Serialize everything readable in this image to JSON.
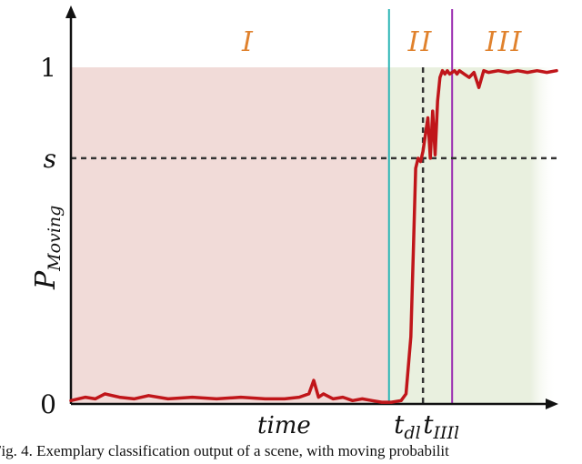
{
  "chart_data": {
    "type": "line",
    "title": "",
    "xlabel": "time",
    "ylabel": "P",
    "ylabel_sub": "Moving",
    "ylim": [
      0,
      1.2
    ],
    "xlim": [
      0,
      100
    ],
    "y_ticks": [
      {
        "value": 0,
        "label": "0"
      },
      {
        "value": 0.73,
        "label": "s"
      },
      {
        "value": 1,
        "label": "1"
      }
    ],
    "x_markers": [
      {
        "value": 72.5,
        "label": "t",
        "sub": "dl"
      },
      {
        "value": 78.5,
        "label": "t",
        "sub": "IIIl"
      }
    ],
    "threshold_s": 0.73,
    "phase_lines": [
      {
        "x": 65.5,
        "color": "#2bb5b5"
      },
      {
        "x": 78.5,
        "color": "#9a2cb0"
      }
    ],
    "phases": [
      {
        "label": "I",
        "x_start": 0,
        "x_end": 65.5,
        "fill": "#f1dbd8"
      },
      {
        "label": "II",
        "x_start": 65.5,
        "x_end": 78.5,
        "fill": "#e9f0df"
      },
      {
        "label": "III",
        "x_start": 78.5,
        "x_end": 100,
        "fill": "#e9f0df"
      }
    ],
    "phase_label_color": "#e0822e",
    "series": [
      {
        "color": "#c0161a",
        "x": [
          0,
          3,
          5,
          7,
          10,
          13,
          16,
          20,
          25,
          30,
          35,
          40,
          44,
          47,
          49,
          50,
          51,
          52,
          54,
          56,
          58,
          60,
          62,
          64,
          66,
          68,
          69,
          70,
          70.5,
          71,
          71.5,
          72,
          72.5,
          73,
          73.5,
          74,
          74.5,
          75,
          75.5,
          76,
          76.5,
          77,
          77.5,
          78,
          78.5,
          79,
          79.5,
          80,
          81,
          82,
          83,
          84,
          85,
          86,
          88,
          90,
          92,
          94,
          96,
          98,
          100
        ],
        "y": [
          0.01,
          0.02,
          0.015,
          0.03,
          0.02,
          0.015,
          0.025,
          0.015,
          0.02,
          0.015,
          0.02,
          0.015,
          0.015,
          0.02,
          0.03,
          0.07,
          0.02,
          0.03,
          0.015,
          0.02,
          0.01,
          0.015,
          0.01,
          0.005,
          0.005,
          0.01,
          0.03,
          0.2,
          0.45,
          0.7,
          0.73,
          0.72,
          0.75,
          0.8,
          0.85,
          0.73,
          0.87,
          0.74,
          0.9,
          0.97,
          0.99,
          0.98,
          0.99,
          0.98,
          0.985,
          0.99,
          0.98,
          0.99,
          0.98,
          0.97,
          0.985,
          0.94,
          0.99,
          0.985,
          0.99,
          0.985,
          0.99,
          0.985,
          0.99,
          0.985,
          0.99
        ]
      }
    ]
  },
  "caption": "Fig. 4.   Exemplary classification output of a scene, with moving probabilit"
}
